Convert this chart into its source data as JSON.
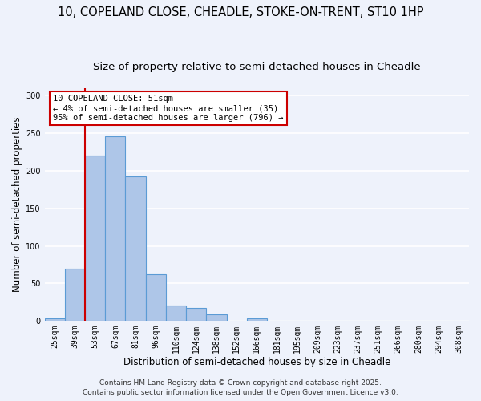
{
  "title_line1": "10, COPELAND CLOSE, CHEADLE, STOKE-ON-TRENT, ST10 1HP",
  "title_line2": "Size of property relative to semi-detached houses in Cheadle",
  "xlabel": "Distribution of semi-detached houses by size in Cheadle",
  "ylabel": "Number of semi-detached properties",
  "bin_labels": [
    "25sqm",
    "39sqm",
    "53sqm",
    "67sqm",
    "81sqm",
    "96sqm",
    "110sqm",
    "124sqm",
    "138sqm",
    "152sqm",
    "166sqm",
    "181sqm",
    "195sqm",
    "209sqm",
    "223sqm",
    "237sqm",
    "251sqm",
    "266sqm",
    "280sqm",
    "294sqm",
    "308sqm"
  ],
  "bin_values": [
    3,
    70,
    220,
    246,
    192,
    62,
    21,
    17,
    9,
    0,
    3,
    0,
    0,
    0,
    0,
    0,
    0,
    0,
    0,
    0,
    0
  ],
  "bar_color": "#aec6e8",
  "bar_edge_color": "#5b9bd5",
  "vline_color": "#cc0000",
  "annotation_text": "10 COPELAND CLOSE: 51sqm\n← 4% of semi-detached houses are smaller (35)\n95% of semi-detached houses are larger (796) →",
  "annotation_box_color": "#ffffff",
  "annotation_box_edge_color": "#cc0000",
  "ylim": [
    0,
    310
  ],
  "yticks": [
    0,
    50,
    100,
    150,
    200,
    250,
    300
  ],
  "footer_line1": "Contains HM Land Registry data © Crown copyright and database right 2025.",
  "footer_line2": "Contains public sector information licensed under the Open Government Licence v3.0.",
  "bg_color": "#eef2fb",
  "grid_color": "#ffffff",
  "title_fontsize": 10.5,
  "subtitle_fontsize": 9.5,
  "axis_label_fontsize": 8.5,
  "tick_fontsize": 7,
  "annotation_fontsize": 7.5,
  "footer_fontsize": 6.5
}
